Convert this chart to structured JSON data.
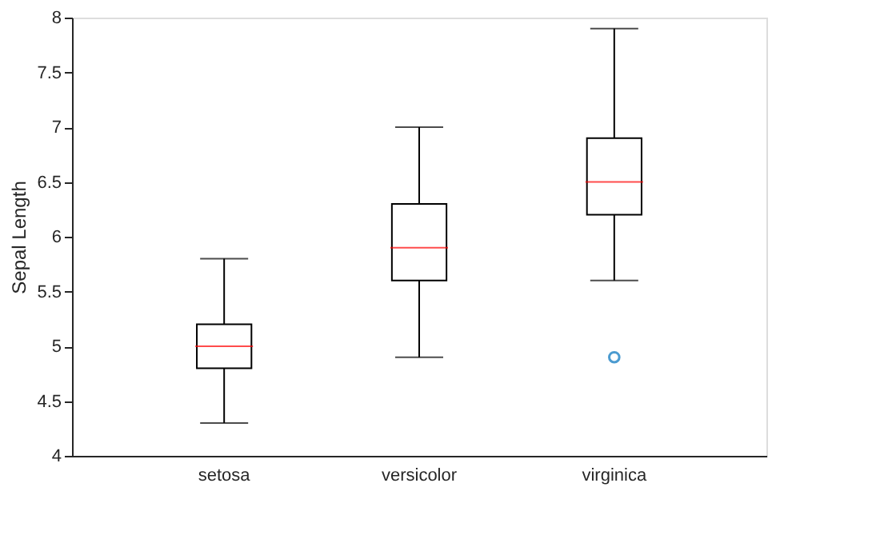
{
  "chart_data": {
    "type": "box",
    "ylabel": "Sepal Length",
    "categories": [
      "setosa",
      "versicolor",
      "virginica"
    ],
    "boxes": [
      {
        "low": 4.3,
        "q1": 4.8,
        "median": 5.0,
        "q3": 5.2,
        "high": 5.8
      },
      {
        "low": 4.9,
        "q1": 5.6,
        "median": 5.9,
        "q3": 6.3,
        "high": 7.0
      },
      {
        "low": 5.6,
        "q1": 6.2,
        "median": 6.5,
        "q3": 6.9,
        "high": 7.9,
        "outliers": [
          4.9
        ]
      }
    ],
    "ylim": [
      4,
      8
    ],
    "yticks": [
      4,
      4.5,
      5,
      5.5,
      6,
      6.5,
      7,
      7.5,
      8
    ],
    "grid": false
  }
}
